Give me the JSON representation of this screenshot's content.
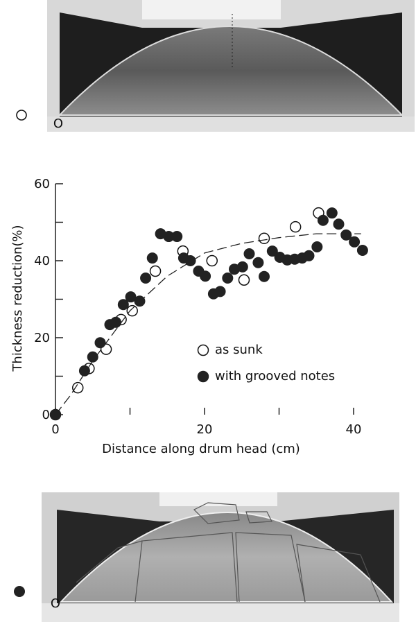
{
  "photos": [
    {
      "label": "O"
    },
    {
      "label": "O"
    }
  ],
  "chart_data": {
    "type": "scatter",
    "xlabel": "Distance along drum head (cm)",
    "ylabel": "Thickness reduction(%)",
    "xlim": [
      0,
      41
    ],
    "ylim": [
      0,
      60
    ],
    "xticks": [
      0,
      20,
      40
    ],
    "yticks": [
      0,
      20,
      40,
      60
    ],
    "xminor": [
      10,
      30
    ],
    "yminor": [
      10,
      30,
      50
    ],
    "series": [
      {
        "name": "as sunk",
        "marker": "open",
        "color": "#111111",
        "x": [
          0,
          3,
          4.5,
          6.8,
          8.8,
          10.3,
          13.4,
          17.1,
          21,
          25.3,
          28,
          32.2,
          35.3
        ],
        "values": [
          0,
          7,
          12,
          17,
          24.7,
          27,
          37.3,
          42.5,
          40,
          35,
          45.8,
          48.8,
          52.4
        ]
      },
      {
        "name": "with grooved notes",
        "marker": "filled",
        "color": "#222222",
        "x": [
          0,
          3.9,
          5,
          6,
          7.3,
          8.1,
          9.1,
          10.1,
          11.3,
          12.1,
          13,
          14.1,
          15.2,
          16.3,
          17.2,
          18.1,
          19.2,
          20.1,
          21.2,
          22.1,
          23.1,
          24,
          25.1,
          26,
          27.2,
          28,
          29.1,
          30.1,
          31.1,
          32.1,
          33.1,
          34,
          35.1,
          35.9,
          37.1,
          38,
          39,
          40.1,
          41.2
        ],
        "values": [
          0,
          11.4,
          15,
          18.7,
          23.4,
          24,
          28.6,
          30.6,
          29.5,
          35.5,
          40.7,
          47,
          46.3,
          46.3,
          40.7,
          40,
          37.3,
          36,
          31.4,
          32,
          35.5,
          37.8,
          38.4,
          41.8,
          39.5,
          35.9,
          42.5,
          40.9,
          40.2,
          40.4,
          40.7,
          41.3,
          43.6,
          50.5,
          52.4,
          49.5,
          46.7,
          44.9,
          42.7
        ]
      }
    ],
    "trend": {
      "x": [
        0,
        2,
        5,
        10,
        15,
        20,
        25,
        30,
        35,
        41
      ],
      "values": [
        0,
        5,
        14,
        27,
        36,
        42,
        44.5,
        46,
        47,
        47
      ]
    }
  }
}
